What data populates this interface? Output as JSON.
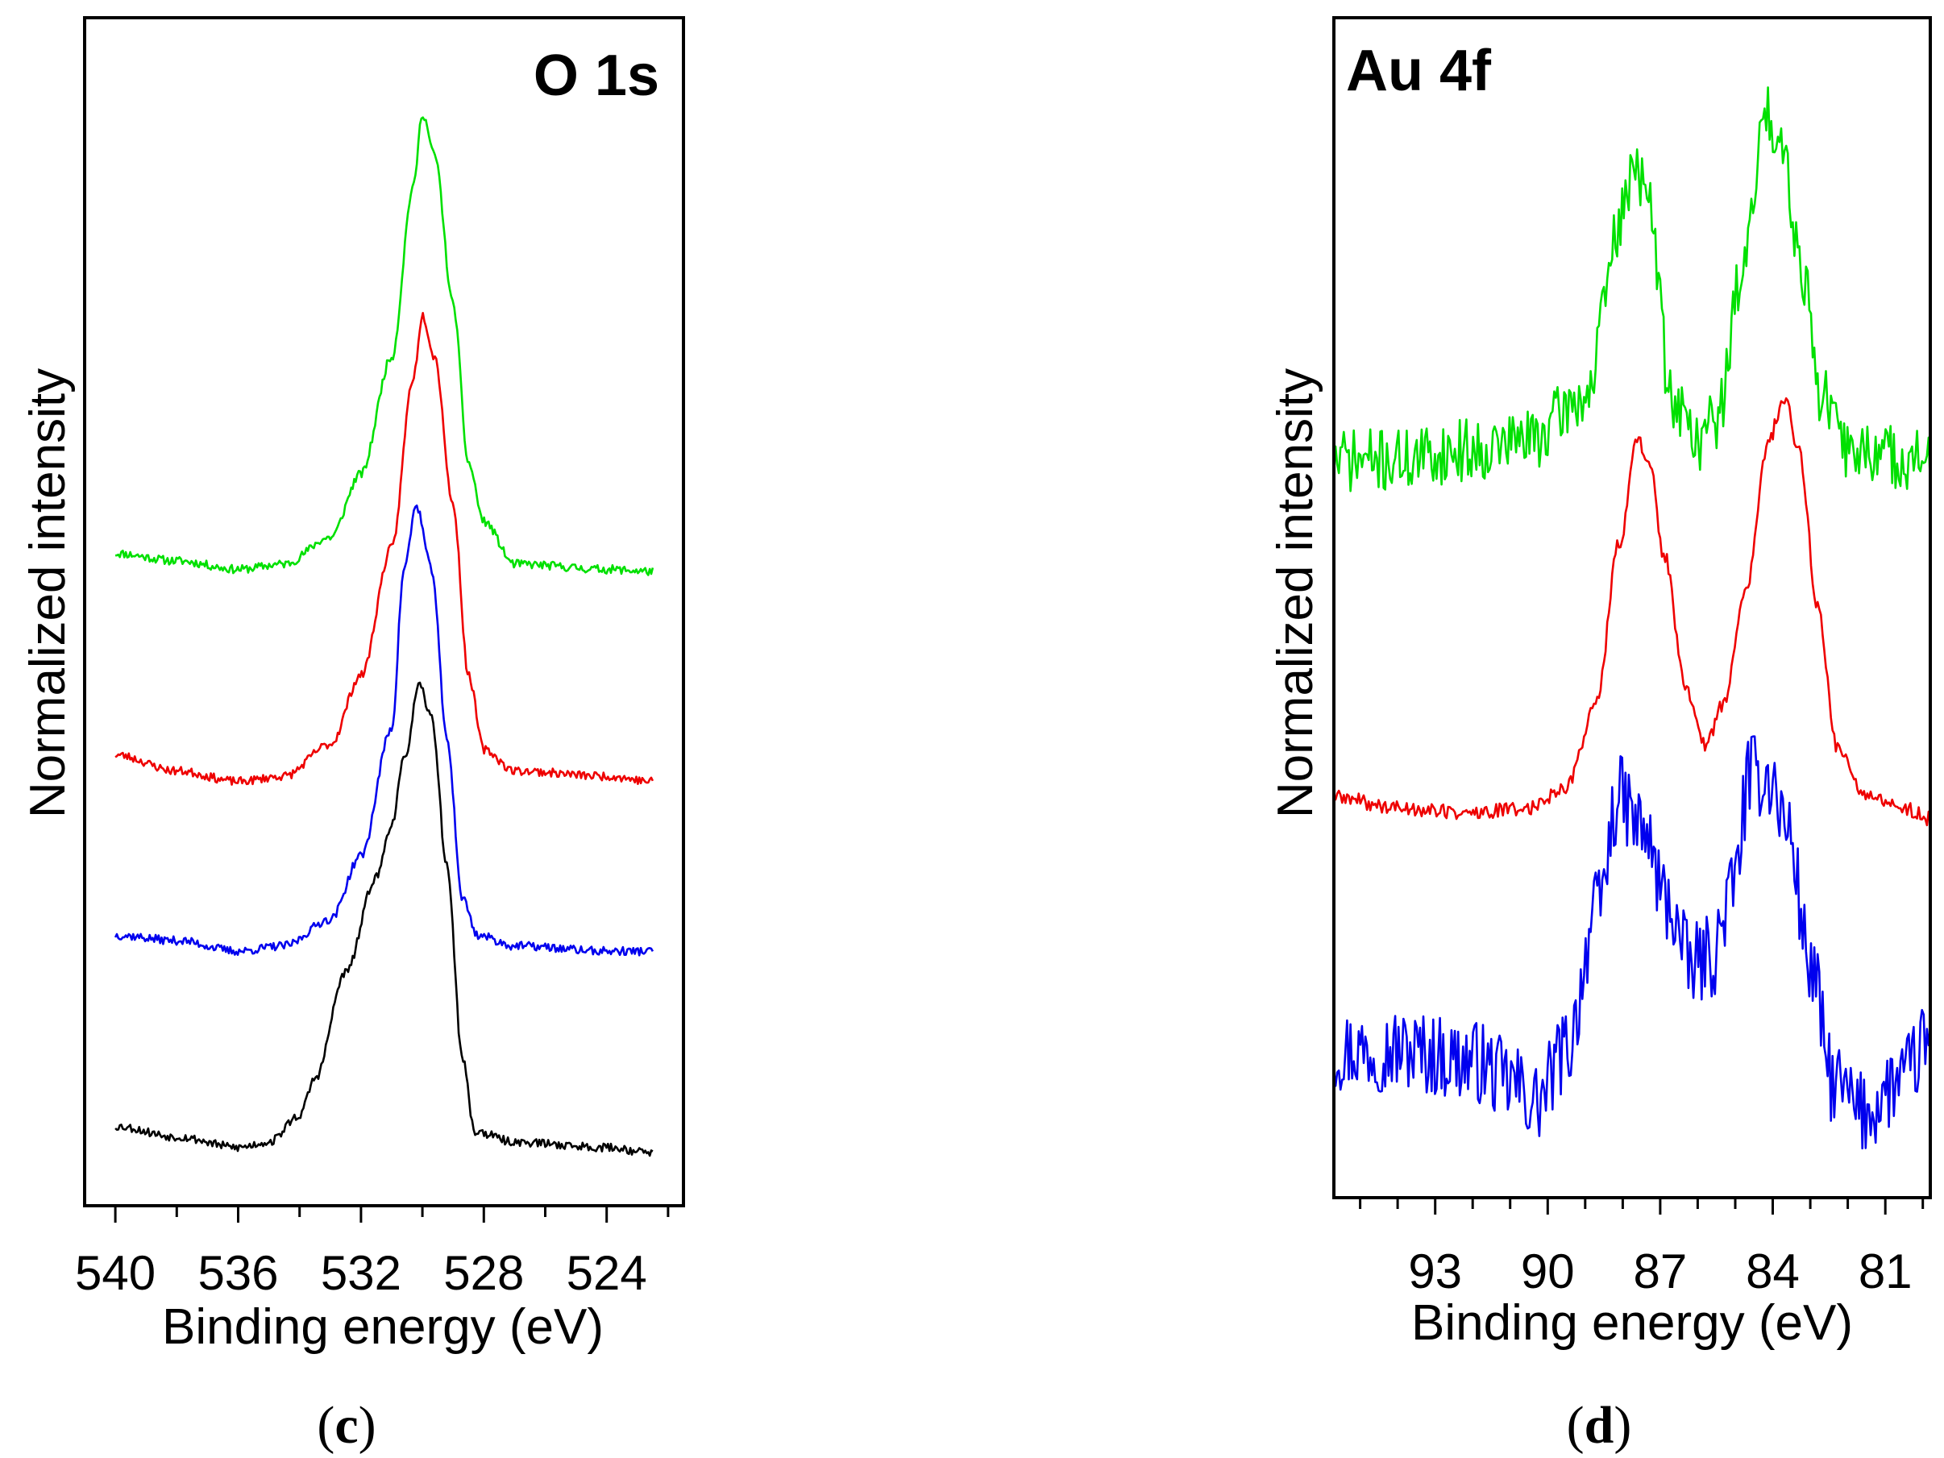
{
  "chart_data": [
    {
      "type": "line",
      "panel_label": "c",
      "title": "O 1s",
      "xlabel": "Binding energy (eV)",
      "ylabel": "Normalized intensity",
      "x_reversed": true,
      "xlim": [
        541,
        521.5
      ],
      "ylim": [
        0,
        1.12
      ],
      "xticks": [
        540,
        536,
        532,
        528,
        524
      ],
      "yticks_shown": false,
      "series": [
        {
          "name": "green",
          "color": "#00e000",
          "noise": 0.004,
          "seed": 11,
          "points": [
            [
              540,
              0.615
            ],
            [
              538,
              0.608
            ],
            [
              536,
              0.6
            ],
            [
              534.5,
              0.605
            ],
            [
              533,
              0.63
            ],
            [
              532,
              0.69
            ],
            [
              531,
              0.8
            ],
            [
              530.3,
              0.96
            ],
            [
              530.0,
              1.03
            ],
            [
              529.6,
              0.99
            ],
            [
              529.0,
              0.85
            ],
            [
              528.5,
              0.7
            ],
            [
              528.0,
              0.645
            ],
            [
              527,
              0.605
            ],
            [
              524,
              0.6
            ],
            [
              522.5,
              0.598
            ]
          ]
        },
        {
          "name": "red",
          "color": "#ee0000",
          "noise": 0.004,
          "seed": 23,
          "points": [
            [
              540,
              0.425
            ],
            [
              538,
              0.41
            ],
            [
              536,
              0.4
            ],
            [
              534.5,
              0.405
            ],
            [
              533,
              0.435
            ],
            [
              532,
              0.5
            ],
            [
              531,
              0.62
            ],
            [
              530.3,
              0.78
            ],
            [
              530.0,
              0.84
            ],
            [
              529.6,
              0.8
            ],
            [
              529.0,
              0.66
            ],
            [
              528.5,
              0.5
            ],
            [
              528.0,
              0.43
            ],
            [
              527,
              0.41
            ],
            [
              524,
              0.405
            ],
            [
              522.5,
              0.4
            ]
          ]
        },
        {
          "name": "blue",
          "color": "#0000ee",
          "noise": 0.004,
          "seed": 37,
          "points": [
            [
              540,
              0.255
            ],
            [
              538,
              0.25
            ],
            [
              536,
              0.24
            ],
            [
              534.5,
              0.245
            ],
            [
              533,
              0.27
            ],
            [
              532,
              0.33
            ],
            [
              531,
              0.45
            ],
            [
              530.6,
              0.6
            ],
            [
              530.2,
              0.66
            ],
            [
              529.7,
              0.6
            ],
            [
              529.2,
              0.44
            ],
            [
              528.7,
              0.29
            ],
            [
              528.2,
              0.255
            ],
            [
              527,
              0.245
            ],
            [
              524,
              0.24
            ],
            [
              522.5,
              0.24
            ]
          ]
        },
        {
          "name": "black",
          "color": "#000000",
          "noise": 0.004,
          "seed": 53,
          "points": [
            [
              540,
              0.075
            ],
            [
              538,
              0.065
            ],
            [
              536,
              0.055
            ],
            [
              535,
              0.06
            ],
            [
              534,
              0.085
            ],
            [
              533.5,
              0.12
            ],
            [
              532.5,
              0.22
            ],
            [
              531.5,
              0.31
            ],
            [
              531,
              0.36
            ],
            [
              530.6,
              0.42
            ],
            [
              530.1,
              0.49
            ],
            [
              529.7,
              0.46
            ],
            [
              529.2,
              0.32
            ],
            [
              528.7,
              0.14
            ],
            [
              528.3,
              0.07
            ],
            [
              527,
              0.06
            ],
            [
              524,
              0.055
            ],
            [
              522.5,
              0.05
            ]
          ]
        }
      ]
    },
    {
      "type": "line",
      "panel_label": "d",
      "title": "Au 4f",
      "xlabel": "Binding energy (eV)",
      "ylabel": "Normalized intensity",
      "x_reversed": true,
      "xlim": [
        95.7,
        79.8
      ],
      "ylim": [
        0,
        1.12
      ],
      "xticks": [
        93,
        90,
        87,
        84,
        81
      ],
      "yticks_shown": false,
      "series": [
        {
          "name": "green",
          "color": "#00e000",
          "noise": 0.03,
          "seed": 71,
          "points": [
            [
              95.7,
              0.7
            ],
            [
              94,
              0.7
            ],
            [
              92,
              0.71
            ],
            [
              90.5,
              0.72
            ],
            [
              89,
              0.76
            ],
            [
              88,
              0.93
            ],
            [
              87.7,
              0.99
            ],
            [
              87.3,
              0.94
            ],
            [
              86.7,
              0.76
            ],
            [
              86,
              0.72
            ],
            [
              85.5,
              0.74
            ],
            [
              84.7,
              0.9
            ],
            [
              84.2,
              1.03
            ],
            [
              83.8,
              1.01
            ],
            [
              83.2,
              0.88
            ],
            [
              82.7,
              0.76
            ],
            [
              82,
              0.71
            ],
            [
              80,
              0.7
            ],
            [
              79.8,
              0.7
            ]
          ]
        },
        {
          "name": "red",
          "color": "#ee0000",
          "noise": 0.007,
          "seed": 89,
          "points": [
            [
              95.7,
              0.38
            ],
            [
              94,
              0.37
            ],
            [
              92,
              0.365
            ],
            [
              90.5,
              0.37
            ],
            [
              89.5,
              0.39
            ],
            [
              88.7,
              0.47
            ],
            [
              88.1,
              0.62
            ],
            [
              87.6,
              0.72
            ],
            [
              87.3,
              0.7
            ],
            [
              86.9,
              0.61
            ],
            [
              86.3,
              0.48
            ],
            [
              85.8,
              0.43
            ],
            [
              85.3,
              0.47
            ],
            [
              84.7,
              0.58
            ],
            [
              84.1,
              0.72
            ],
            [
              83.7,
              0.76
            ],
            [
              83.3,
              0.71
            ],
            [
              82.8,
              0.56
            ],
            [
              82.3,
              0.43
            ],
            [
              81.5,
              0.38
            ],
            [
              80.5,
              0.37
            ],
            [
              79.8,
              0.36
            ]
          ]
        },
        {
          "name": "blue",
          "color": "#0000ee",
          "noise": 0.04,
          "seed": 97,
          "points": [
            [
              95.7,
              0.14
            ],
            [
              94,
              0.14
            ],
            [
              92,
              0.13
            ],
            [
              91,
              0.11
            ],
            [
              90.3,
              0.09
            ],
            [
              89.5,
              0.14
            ],
            [
              88.7,
              0.27
            ],
            [
              88.1,
              0.38
            ],
            [
              87.5,
              0.35
            ],
            [
              86.8,
              0.28
            ],
            [
              86.2,
              0.22
            ],
            [
              85.6,
              0.23
            ],
            [
              85.1,
              0.29
            ],
            [
              84.6,
              0.4
            ],
            [
              84.1,
              0.4
            ],
            [
              83.6,
              0.35
            ],
            [
              83,
              0.22
            ],
            [
              82.4,
              0.11
            ],
            [
              81.6,
              0.08
            ],
            [
              80.6,
              0.11
            ],
            [
              79.8,
              0.15
            ]
          ]
        }
      ]
    }
  ]
}
